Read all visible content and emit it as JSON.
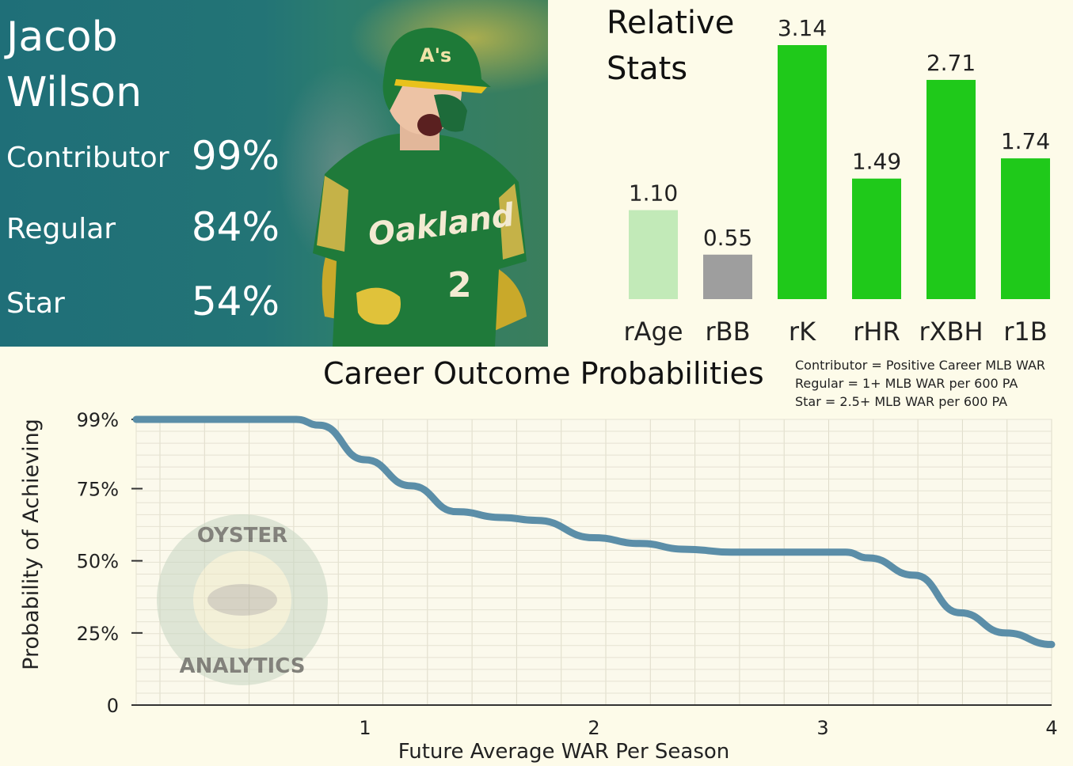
{
  "player": {
    "first_name": "Jacob",
    "last_name": "Wilson",
    "outcomes": [
      {
        "label": "Contributor",
        "value": "99%"
      },
      {
        "label": "Regular",
        "value": "84%"
      },
      {
        "label": "Star",
        "value": "54%"
      }
    ],
    "jersey_text": "Oakland",
    "jersey_number": "2",
    "helmet_logo": "A's"
  },
  "relative_stats": {
    "title_line1": "Relative",
    "title_line2": "Stats"
  },
  "definitions": [
    "Contributor = Positive Career MLB WAR",
    "Regular = 1+ MLB WAR per 600 PA",
    "Star = 2.5+ MLB WAR per 600 PA"
  ],
  "watermark": "OYSTER ANALYTICS",
  "colors": {
    "card_bg": "#1f6f78",
    "bar_light_green": "#c2eab8",
    "bar_gray": "#9e9e9e",
    "bar_green": "#1fc91a",
    "line_blue": "#5b8ea8",
    "page_bg": "#fdfbe9"
  },
  "chart_data": [
    {
      "type": "bar",
      "title": "Relative Stats",
      "categories": [
        "rAge",
        "rBB",
        "rK",
        "rHR",
        "rXBH",
        "r1B"
      ],
      "values": [
        1.1,
        0.55,
        3.14,
        1.49,
        2.71,
        1.74
      ],
      "value_labels": [
        "1.10",
        "0.55",
        "3.14",
        "1.49",
        "2.71",
        "1.74"
      ],
      "bar_colors": [
        "#c2eab8",
        "#9e9e9e",
        "#1fc91a",
        "#1fc91a",
        "#1fc91a",
        "#1fc91a"
      ],
      "ylim": [
        0,
        3.14
      ]
    },
    {
      "type": "line",
      "title": "Career Outcome Probabilities",
      "xlabel": "Future Average WAR Per Season",
      "ylabel": "Probability of Achieving",
      "xlim": [
        0,
        4
      ],
      "ylim": [
        0,
        100
      ],
      "x_ticks": [
        1,
        2,
        3,
        4
      ],
      "x_tick_labels": [
        "1",
        "2",
        "3",
        "4"
      ],
      "y_ticks": [
        0,
        25,
        50,
        75,
        99
      ],
      "y_tick_labels": [
        "0",
        "25%",
        "50%",
        "75%",
        "99%"
      ],
      "grid": true,
      "x": [
        0.0,
        0.2,
        0.4,
        0.6,
        0.7,
        0.8,
        1.0,
        1.2,
        1.4,
        1.6,
        1.75,
        2.0,
        2.2,
        2.4,
        2.6,
        2.8,
        3.0,
        3.1,
        3.2,
        3.4,
        3.6,
        3.8,
        4.0
      ],
      "y": [
        99,
        99,
        99,
        99,
        99,
        97,
        85,
        76,
        67,
        65,
        64,
        58,
        56,
        54,
        53,
        53,
        53,
        53,
        51,
        45,
        32,
        25,
        21
      ]
    }
  ]
}
